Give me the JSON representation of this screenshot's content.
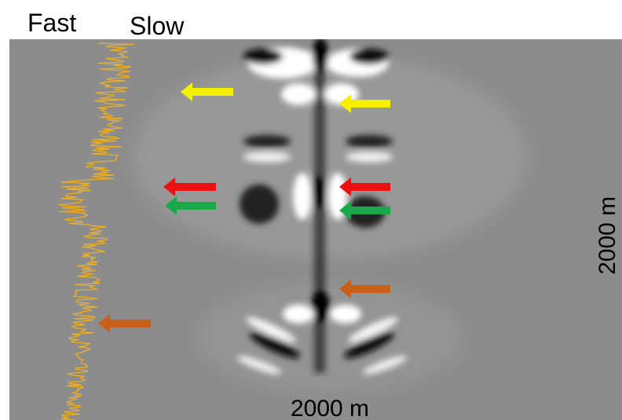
{
  "labels": {
    "fast": "Fast",
    "slow": "Slow",
    "width": "2000 m",
    "depth": "2000 m"
  }
}
